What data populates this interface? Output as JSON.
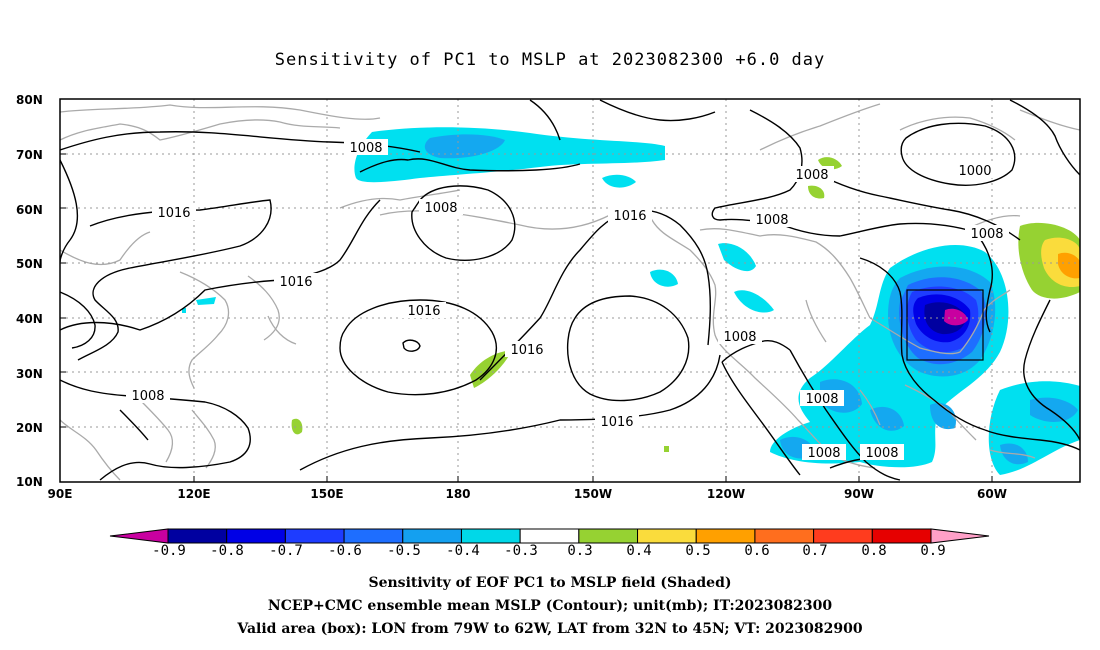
{
  "title": "Sensitivity of PC1 to MSLP at 2023082300 +6.0 day",
  "lat_labels": [
    "80N",
    "70N",
    "60N",
    "50N",
    "40N",
    "30N",
    "20N",
    "10N"
  ],
  "lon_labels": [
    "90E",
    "120E",
    "150E",
    "180",
    "150W",
    "120W",
    "90W",
    "60W"
  ],
  "isobar_labels": [
    "1008",
    "1016",
    "1008",
    "1016",
    "1016",
    "1016",
    "1016",
    "1008",
    "1016",
    "1008",
    "1008",
    "1008",
    "1008",
    "1008",
    "1000",
    "1008"
  ],
  "colorbar": {
    "labels": [
      "-0.9",
      "-0.8",
      "-0.7",
      "-0.6",
      "-0.5",
      "-0.4",
      "-0.3",
      "0.3",
      "0.4",
      "0.5",
      "0.6",
      "0.7",
      "0.8",
      "0.9"
    ],
    "colors": [
      "#0000a0",
      "#0000e6",
      "#1e3cff",
      "#1e6eff",
      "#14a0f0",
      "#00d8e8",
      "#ffffff",
      "#96d232",
      "#fadc3c",
      "#ffa000",
      "#ff6e1e",
      "#ff3c1e",
      "#e60000"
    ],
    "under_color": "#c800a0",
    "over_color": "#ffa0c8"
  },
  "captions": [
    "Sensitivity of EOF PC1 to MSLP field (Shaded)",
    "NCEP+CMC ensemble mean MSLP (Contour); unit(mb); IT:2023082300",
    "Valid area (box): LON from 79W to 62W, LAT from 32N to 45N; VT: 2023082900"
  ]
}
